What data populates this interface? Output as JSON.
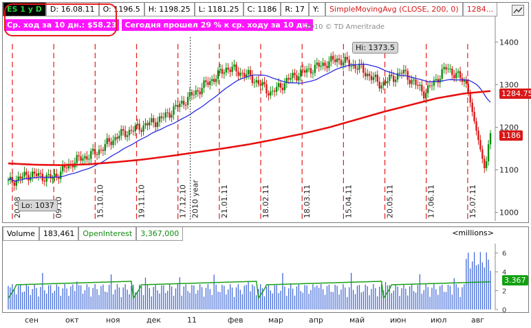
{
  "header": {
    "symbol": "ES 1 y D",
    "date": "D: 16.08.11",
    "open": "O: 1196.5",
    "high": "H: 1198.25",
    "low": "L: 1181.25",
    "close": "C: 1186",
    "range": "R: 17",
    "yield": "Y:",
    "sma_study": "SimpleMovingAvg (CLOSE, 200, 0)",
    "sma_value": "1284..."
  },
  "annotations": {
    "avg_move": "Ср. ход за 10 дн.: $58.23",
    "today_move": "Сегодня прошел 29 % к ср. ходу за 10 дн.",
    "copyright": "2010 © TD Ameritrade",
    "high_label": "Hi: 1373.5",
    "low_label": "Lo: 1037",
    "year_label": "2010 year"
  },
  "price_axis": {
    "ticks": [
      "1000",
      "1100",
      "1200",
      "1300",
      "1400"
    ],
    "sma_badge": "1284.75",
    "close_badge": "1186",
    "sma_badge_color": "#d81818",
    "close_badge_color": "#d81818"
  },
  "date_markers": [
    "20.08",
    "09.10",
    "15.10.10",
    "19.11.10",
    "17.12.10",
    "21.01.11",
    "18.02.11",
    "18.03.11",
    "15.04.11",
    "20.05.11",
    "17.06.11",
    "15.07.11"
  ],
  "volume_header": {
    "volume_label": "Volume",
    "volume_value": "183,461",
    "oi_label": "OpenInterest",
    "oi_value": "3,367,000",
    "units": "<millions>"
  },
  "volume_axis": {
    "ticks": [
      "0",
      "2",
      "4",
      "6"
    ],
    "oi_badge": "3.367",
    "oi_badge_color": "#12a012"
  },
  "month_labels": [
    "сен",
    "окт",
    "ноя",
    "дек",
    "11",
    "фев",
    "мар",
    "апр",
    "май",
    "июн",
    "июл",
    "авг"
  ],
  "colors": {
    "up_candle": "#0b8a0b",
    "down_candle": "#d81818",
    "sma_200": "#e81010",
    "sma_fast": "#2a2ae0",
    "volume_bar": "#3e68d8",
    "open_interest": "#16a016",
    "marker_line": "#e41a1a"
  },
  "chart_data": {
    "type": "line",
    "price_range": [
      980,
      1460
    ],
    "series": [
      {
        "name": "SimpleMovingAvg (CLOSE, 200, 0)",
        "values": [
          1115,
          1112,
          1111,
          1113,
          1118,
          1124,
          1132,
          1141,
          1150,
          1160,
          1172,
          1185,
          1200,
          1218,
          1236,
          1252,
          1268,
          1279,
          1285
        ]
      }
    ],
    "close": [
      1070,
      1090,
      1080,
      1120,
      1140,
      1180,
      1200,
      1220,
      1260,
      1300,
      1340,
      1320,
      1280,
      1320,
      1340,
      1360,
      1340,
      1300,
      1330,
      1280,
      1340,
      1300,
      1186
    ],
    "volume_range": [
      0,
      7
    ]
  }
}
